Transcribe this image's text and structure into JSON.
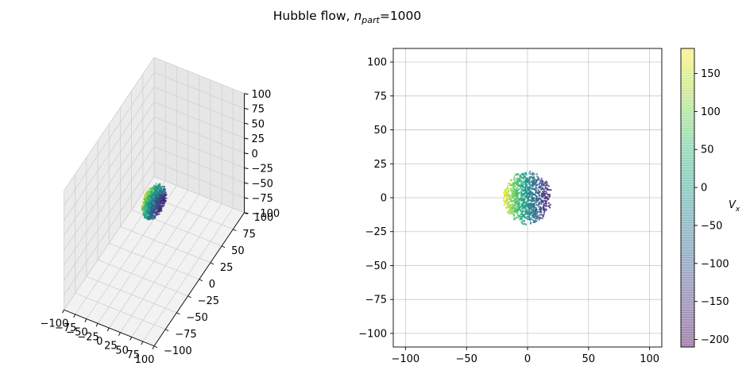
{
  "figure": {
    "title_prefix": "Hubble flow, ",
    "title_var": "n",
    "title_sub": "part",
    "title_suffix": "=1000"
  },
  "chart_data": [
    {
      "type": "scatter",
      "projection": "3d",
      "n_points": 1000,
      "cloud_center": [
        0,
        0,
        0
      ],
      "cloud_radius": 20,
      "color_by": "Vx",
      "xlim": [
        -100,
        100
      ],
      "ylim": [
        -100,
        100
      ],
      "zlim": [
        -100,
        100
      ],
      "xticks": [
        "−100",
        "−75",
        "−50",
        "−25",
        "0",
        "25",
        "50",
        "75",
        "100"
      ],
      "yticks": [
        "−100",
        "−75",
        "−50",
        "−25",
        "0",
        "25",
        "50",
        "75",
        "100"
      ],
      "zticks": [
        "−100",
        "−75",
        "−50",
        "−25",
        "0",
        "25",
        "50",
        "75",
        "100"
      ],
      "grid": true
    },
    {
      "type": "scatter",
      "n_points": 1000,
      "cloud_center": [
        0,
        0
      ],
      "cloud_radius": 20,
      "color_by": "Vx",
      "xlim": [
        -110,
        110
      ],
      "ylim": [
        -110,
        110
      ],
      "xticks": [
        -100,
        -50,
        0,
        50,
        100
      ],
      "yticks": [
        -100,
        -75,
        -50,
        -25,
        0,
        25,
        50,
        75,
        100
      ],
      "tick_labels_x": [
        "−100",
        "−50",
        "0",
        "50",
        "100"
      ],
      "tick_labels_y": [
        "−100",
        "−75",
        "−50",
        "−25",
        "0",
        "25",
        "50",
        "75",
        "100"
      ],
      "grid": true
    }
  ],
  "colorbar": {
    "label": "V",
    "label_sub": "x",
    "range": [
      -210,
      183
    ],
    "ticks": [
      -200,
      -150,
      -100,
      -50,
      0,
      50,
      100,
      150
    ],
    "tick_labels": [
      "−200",
      "−150",
      "−100",
      "−50",
      "0",
      "50",
      "100",
      "150"
    ],
    "colormap": "viridis",
    "alpha": 0.4
  }
}
